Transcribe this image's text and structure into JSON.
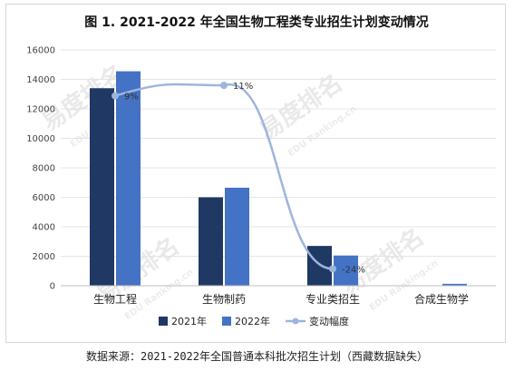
{
  "chart_data": {
    "type": "bar",
    "title": "图 1. 2021-2022 年全国生物工程类专业招生计划变动情况",
    "categories": [
      "生物工程",
      "生物制药",
      "专业类招生",
      "合成生物学"
    ],
    "series": [
      {
        "name": "2021年",
        "values": [
          13400,
          6000,
          2700,
          0
        ],
        "color": "#1f3864"
      },
      {
        "name": "2022年",
        "values": [
          14550,
          6650,
          2050,
          130
        ],
        "color": "#4472c4"
      }
    ],
    "line_series": {
      "name": "变动幅度",
      "points": [
        {
          "category": "生物工程",
          "label": "9%"
        },
        {
          "category": "生物制药",
          "label": "11%"
        },
        {
          "category": "专业类招生",
          "label": "-24%"
        }
      ],
      "color": "#9fb4dd"
    },
    "y_ticks": [
      "0",
      "2000",
      "4000",
      "6000",
      "8000",
      "10000",
      "12000",
      "14000",
      "16000"
    ],
    "ylim": [
      0,
      16000
    ],
    "legend": "bottom"
  },
  "watermark": {
    "brand": "易度排名",
    "site": "EDU Ranking.cn"
  },
  "source_note": "数据来源：2021-2022年全国普通本科批次招生计划（西藏数据缺失）"
}
